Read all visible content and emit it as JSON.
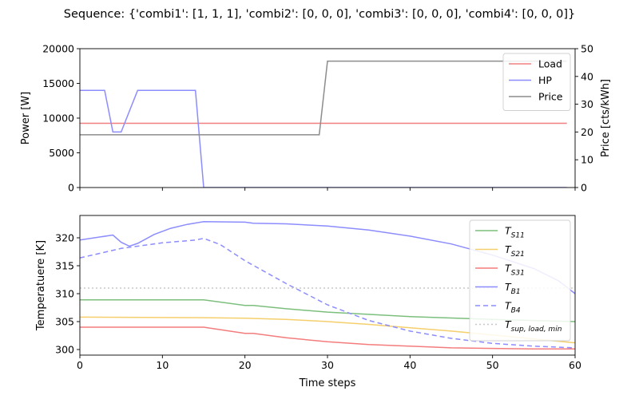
{
  "figure": {
    "title": "Sequence: {'combi1': [1, 1, 1], 'combi2': [0, 0, 0], 'combi3': [0, 0, 0], 'combi4': [0, 0, 0]}"
  },
  "chart_data": [
    {
      "type": "line",
      "title": "",
      "xlabel": "",
      "ylabel": "Power [W]",
      "ylabel_right": "Price [cts/kWh]",
      "xlim": [
        0,
        60
      ],
      "ylim": [
        0,
        20000
      ],
      "ylim_right": [
        0,
        50
      ],
      "x_ticks": [
        0,
        10,
        20,
        30,
        40,
        50,
        60
      ],
      "y_ticks": [
        0,
        5000,
        10000,
        15000,
        20000
      ],
      "y_ticks_right": [
        0,
        10,
        20,
        30,
        40,
        50
      ],
      "legend_position": "top-right",
      "series": [
        {
          "name": "Load",
          "axis": "left",
          "color": "#f08080",
          "dash": "solid",
          "x": [
            0,
            59
          ],
          "y": [
            9250,
            9250
          ]
        },
        {
          "name": "HP",
          "axis": "left",
          "color": "#8c8cff",
          "dash": "solid",
          "x": [
            0,
            3,
            4,
            5,
            7,
            14,
            15,
            59
          ],
          "y": [
            14000,
            14000,
            8000,
            8000,
            14000,
            14000,
            0,
            0
          ]
        },
        {
          "name": "Price",
          "axis": "right",
          "color": "#8c8c8c",
          "dash": "solid",
          "x": [
            0,
            29,
            30,
            59
          ],
          "y": [
            19,
            19,
            45.5,
            45.5
          ]
        }
      ]
    },
    {
      "type": "line",
      "title": "",
      "xlabel": "Time steps",
      "ylabel": "Temperatuere [K]",
      "xlim": [
        0,
        60
      ],
      "ylim": [
        299,
        324
      ],
      "x_ticks": [
        0,
        10,
        20,
        30,
        40,
        50,
        60
      ],
      "y_ticks": [
        300,
        305,
        310,
        315,
        320
      ],
      "legend_position": "top-right",
      "series": [
        {
          "name": "T_S11",
          "label_main": "T",
          "label_sub": "S11",
          "color": "#7cbf7c",
          "dash": "solid",
          "x": [
            0,
            15,
            20,
            21,
            25,
            30,
            40,
            50,
            60
          ],
          "y": [
            308.9,
            308.9,
            307.9,
            307.9,
            307.3,
            306.7,
            305.9,
            305.4,
            305.0
          ]
        },
        {
          "name": "T_S21",
          "label_main": "T",
          "label_sub": "S21",
          "color": "#f5cf6b",
          "dash": "solid",
          "x": [
            0,
            15,
            20,
            25,
            30,
            35,
            40,
            45,
            50,
            55,
            60
          ],
          "y": [
            305.8,
            305.7,
            305.6,
            305.4,
            305.0,
            304.5,
            303.9,
            303.3,
            302.6,
            301.9,
            301.2
          ]
        },
        {
          "name": "T_S31",
          "label_main": "T",
          "label_sub": "S31",
          "color": "#f47c7c",
          "dash": "solid",
          "x": [
            0,
            15,
            20,
            21,
            25,
            30,
            35,
            40,
            45,
            50,
            55,
            60
          ],
          "y": [
            304.0,
            304.0,
            302.9,
            302.9,
            302.1,
            301.4,
            300.9,
            300.6,
            300.3,
            300.2,
            300.1,
            300.1
          ]
        },
        {
          "name": "T_B1",
          "label_main": "T",
          "label_sub": "B1",
          "color": "#8c8cff",
          "dash": "solid",
          "x": [
            0,
            4,
            5,
            6,
            7,
            9,
            11,
            13,
            15,
            20,
            21,
            25,
            30,
            35,
            40,
            45,
            50,
            55,
            58,
            60
          ],
          "y": [
            319.6,
            320.5,
            319.2,
            318.5,
            319.0,
            320.6,
            321.7,
            322.4,
            322.9,
            322.8,
            322.6,
            322.5,
            322.1,
            321.4,
            320.3,
            318.9,
            316.9,
            314.5,
            312.3,
            310.0
          ]
        },
        {
          "name": "T_B4",
          "label_main": "T",
          "label_sub": "B4",
          "color": "#8c8cff",
          "dash": "dashed",
          "x": [
            0,
            5,
            10,
            14,
            15,
            17,
            20,
            25,
            30,
            35,
            40,
            45,
            50,
            55,
            60
          ],
          "y": [
            316.4,
            318.1,
            319.1,
            319.6,
            319.9,
            318.8,
            315.9,
            311.8,
            308.0,
            305.2,
            303.3,
            302.0,
            301.1,
            300.6,
            300.3
          ]
        },
        {
          "name": "T_sup,load,min",
          "label_main": "T",
          "label_sub": "sup, load, min",
          "color": "#c8c8c8",
          "dash": "dotted",
          "x": [
            0,
            60
          ],
          "y": [
            311.0,
            311.0
          ]
        }
      ]
    }
  ]
}
